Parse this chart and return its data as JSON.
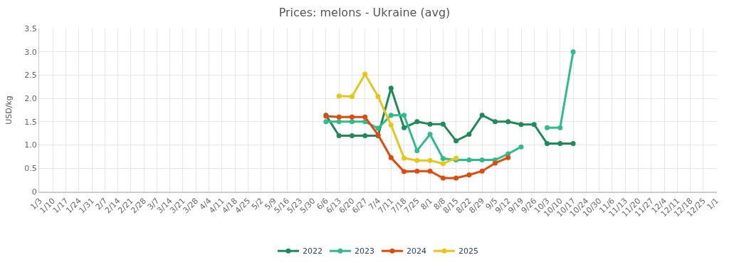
{
  "chart_data": {
    "type": "line",
    "title": "Prices: melons - Ukraine (avg)",
    "ylabel": "USD/kg",
    "categories": [
      "1/3",
      "1/10",
      "1/17",
      "1/24",
      "1/31",
      "2/7",
      "2/14",
      "2/21",
      "2/28",
      "3/7",
      "3/14",
      "3/21",
      "3/28",
      "4/4",
      "4/11",
      "4/18",
      "4/25",
      "5/2",
      "5/9",
      "5/16",
      "5/23",
      "5/30",
      "6/6",
      "6/13",
      "6/20",
      "6/27",
      "7/4",
      "7/11",
      "7/18",
      "7/25",
      "8/1",
      "8/8",
      "8/15",
      "8/22",
      "8/29",
      "9/5",
      "9/12",
      "9/19",
      "9/26",
      "10/3",
      "10/10",
      "10/17",
      "10/24",
      "10/30",
      "11/6",
      "11/13",
      "11/20",
      "11/27",
      "12/4",
      "12/11",
      "12/18",
      "12/25",
      "1/1"
    ],
    "series": [
      {
        "name": "2025",
        "color": "#e6c619",
        "values": [
          null,
          null,
          null,
          null,
          null,
          null,
          null,
          null,
          null,
          null,
          null,
          null,
          null,
          null,
          null,
          null,
          null,
          null,
          null,
          null,
          null,
          null,
          null,
          2.05,
          2.04,
          2.52,
          2.04,
          1.43,
          0.72,
          0.67,
          0.67,
          0.6,
          0.72,
          null,
          null,
          null,
          null,
          null,
          null,
          null,
          null,
          null,
          null,
          null,
          null,
          null,
          null,
          null,
          null,
          null,
          null,
          null,
          null
        ]
      },
      {
        "name": "2024",
        "color": "#e04a0a",
        "values": [
          null,
          null,
          null,
          null,
          null,
          null,
          null,
          null,
          null,
          null,
          null,
          null,
          null,
          null,
          null,
          null,
          null,
          null,
          null,
          null,
          null,
          null,
          1.62,
          1.6,
          1.6,
          1.6,
          1.22,
          0.73,
          0.43,
          0.44,
          0.44,
          0.29,
          0.29,
          0.36,
          0.44,
          0.61,
          0.73,
          null,
          null,
          null,
          null,
          null,
          null,
          null,
          null,
          null,
          null,
          null,
          null,
          null,
          null,
          null,
          null
        ]
      },
      {
        "name": "2023",
        "color": "#2ebd8a",
        "values": [
          null,
          null,
          null,
          null,
          null,
          null,
          null,
          null,
          null,
          null,
          null,
          null,
          null,
          null,
          null,
          null,
          null,
          null,
          null,
          null,
          null,
          null,
          1.5,
          1.5,
          1.5,
          1.5,
          1.36,
          1.64,
          1.64,
          0.88,
          1.23,
          0.71,
          0.68,
          0.68,
          0.68,
          0.68,
          0.81,
          0.96,
          null,
          1.37,
          1.37,
          3.0,
          null,
          null,
          null,
          null,
          null,
          null,
          null,
          null,
          null,
          null,
          null
        ]
      },
      {
        "name": "2022",
        "color": "#1e8a5a",
        "values": [
          null,
          null,
          null,
          null,
          null,
          null,
          null,
          null,
          null,
          null,
          null,
          null,
          null,
          null,
          null,
          null,
          null,
          null,
          null,
          null,
          null,
          null,
          1.64,
          1.2,
          1.2,
          1.2,
          1.2,
          2.22,
          1.37,
          1.5,
          1.45,
          1.45,
          1.09,
          1.23,
          1.64,
          1.5,
          1.5,
          1.44,
          1.44,
          1.03,
          1.03,
          1.03,
          null,
          null,
          null,
          null,
          null,
          null,
          null,
          null,
          null,
          null,
          null
        ]
      }
    ],
    "ylim": [
      0,
      3.5
    ],
    "yticks": [
      0,
      {
        "value": 0.5,
        "label": "0.5"
      },
      {
        "value": 1,
        "label": "1.0"
      },
      {
        "value": 1.5,
        "label": "1.5"
      },
      {
        "value": 2,
        "label": "2.0"
      },
      {
        "value": 2.5,
        "label": "2.5"
      },
      {
        "value": 3,
        "label": "3.0"
      },
      {
        "value": 3.5,
        "label": "3.5"
      }
    ],
    "grid": true,
    "legend": "bottom",
    "marker": "circle",
    "line_style": "solid"
  }
}
